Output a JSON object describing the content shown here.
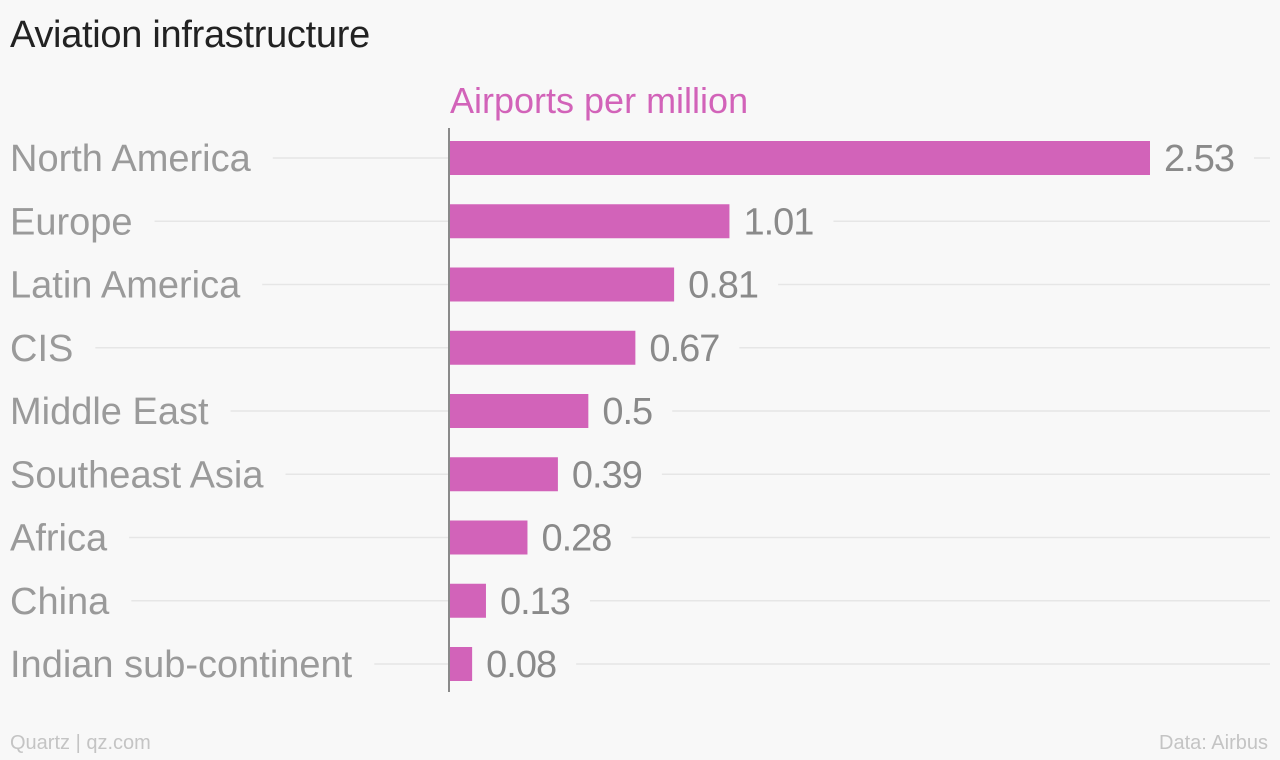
{
  "title": "Aviation infrastructure",
  "source": {
    "left": "Quartz | qz.com",
    "right": "Data: Airbus"
  },
  "colors": {
    "bar": "#d263b9",
    "series_label": "#d263b9",
    "category_label": "#9a9a9a",
    "value_label": "#8a8a8a",
    "gridline": "#e6e6e6",
    "axis": "#8a8a8a",
    "title": "#222222",
    "footer": "#c4c4c4"
  },
  "chart_data": {
    "type": "bar",
    "orientation": "horizontal",
    "title": "Aviation infrastructure",
    "series": [
      {
        "name": "Airports per million",
        "values": [
          2.53,
          1.01,
          0.81,
          0.67,
          0.5,
          0.39,
          0.28,
          0.13,
          0.08
        ]
      }
    ],
    "categories": [
      "North America",
      "Europe",
      "Latin America",
      "CIS",
      "Middle East",
      "Southeast Asia",
      "Africa",
      "China",
      "Indian sub-continent"
    ],
    "value_labels": [
      "2.53",
      "1.01",
      "0.81",
      "0.67",
      "0.5",
      "0.39",
      "0.28",
      "0.13",
      "0.08"
    ],
    "xlim": [
      0,
      2.53
    ],
    "grid": true,
    "legend": "none"
  }
}
